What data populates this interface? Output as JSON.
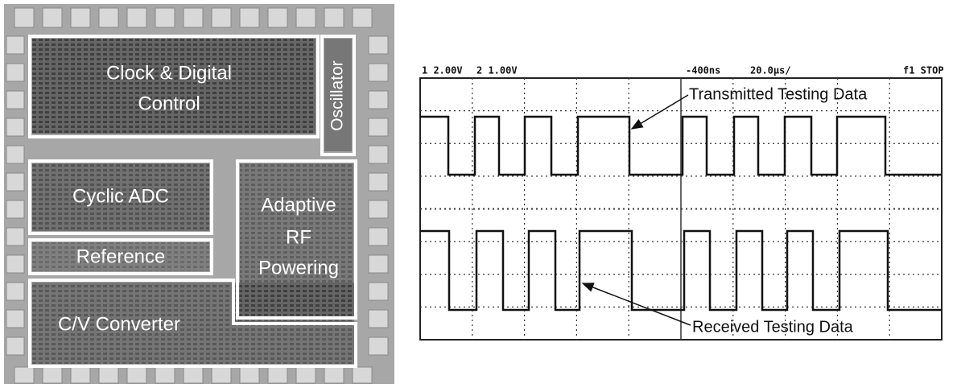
{
  "chip": {
    "blocks": [
      {
        "label_lines": [
          "Clock & Digital",
          "Control"
        ]
      },
      {
        "label_lines": [
          "Oscillator"
        ]
      },
      {
        "label_lines": [
          "Cyclic ADC"
        ]
      },
      {
        "label_lines": [
          "Reference"
        ]
      },
      {
        "label_lines": [
          "Adaptive",
          "RF",
          "Powering"
        ]
      },
      {
        "label_lines": [
          "C/V Converter"
        ]
      }
    ]
  },
  "scope": {
    "header": [
      "1 2.00V",
      "2 1.00V",
      "-400ns",
      "20.0μs/",
      "f1 STOP"
    ],
    "annotations": [
      "Transmitted Testing Data",
      "Received Testing Data"
    ]
  }
}
